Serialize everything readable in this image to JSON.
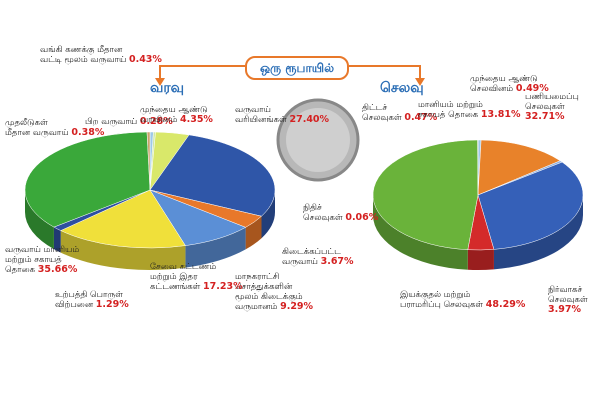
{
  "header": {
    "title": "ஒரு ரூபாயில்"
  },
  "chart_data": [
    {
      "type": "pie",
      "title": "வரவு",
      "categories": [
        "வங்கி கணக்கு மீதான\nவட்டி மூலம் வருவாய்",
        "பிற வருவாய்",
        "முந்தைய ஆண்டு\nவரவினம்",
        "வருவாய்\nவரியினங்கள்",
        "கிடைக்கப்பட்ட\nவருவாய்",
        "மாநகராட்சி\nசொத்துக்களின்\nமூலம் கிடைக்கும்\nவருமானம்",
        "சேவை கட்டணம்\nமற்றும் இதர\nகட்டணங்கள்",
        "உற்பத்தி பொருள்\nவிற்பனை",
        "வருவாய் மானியம்\nமற்றும் சகாயத்\nதொகை",
        "முதலீடுகள்\nமீதான வருவாய்"
      ],
      "values": [
        0.43,
        0.28,
        4.35,
        27.4,
        3.67,
        9.29,
        17.23,
        1.29,
        35.66,
        0.38
      ],
      "value_labels": [
        "0.43%",
        "0.28%",
        "4.35%",
        "27.40%",
        "3.67%",
        "9.29%",
        "17.23%",
        "1.29%",
        "35.66%",
        "0.38%"
      ],
      "colors": [
        "#9ec9e8",
        "#cfe8a8",
        "#d9e86a",
        "#2f56a8",
        "#e8782a",
        "#5b8fd6",
        "#f0e03a",
        "#2e4fa0",
        "#3aa83a",
        "#c9a36a"
      ]
    },
    {
      "type": "pie",
      "title": "செலவு",
      "categories": [
        "திட்டச்\nசெலவுகள்",
        "மானியம் மற்றும்\nசகாயத் தொகை",
        "முந்தைய ஆண்டு\nசெலவினம்",
        "பணியமைப்பு\nசெலவுகள்",
        "நிர்வாகச்\nசெலவுகள்",
        "இயக்குதல் மற்றும்\nபராமரிப்பு செலவுகள்",
        "நிதிச்\nசெலவுகள்"
      ],
      "values": [
        0.47,
        13.81,
        0.49,
        32.71,
        3.97,
        48.29,
        0.06
      ],
      "value_labels": [
        "0.47%",
        "13.81%",
        "0.49%",
        "32.71%",
        "3.97%",
        "48.29%",
        "0.06%"
      ],
      "colors": [
        "#a0c8e8",
        "#e8822a",
        "#8fb0e0",
        "#3560b8",
        "#d42a2a",
        "#6ab33a",
        "#888888"
      ]
    }
  ]
}
